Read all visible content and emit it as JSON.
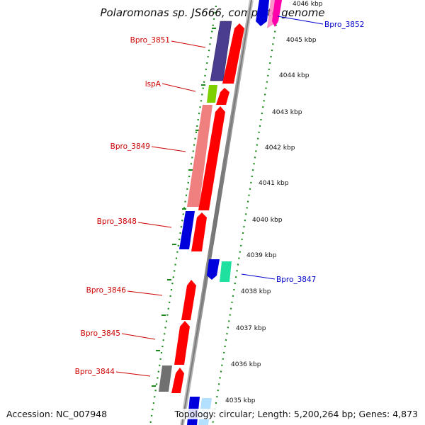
{
  "title": "Polaromonas sp. JS666, complete genome",
  "footer": {
    "accession": "Accession: NC_007948",
    "topology": "Topology: circular; Length: 5,200,264 bp; Genes: 4,873"
  },
  "scale_labels": [
    "4046 kbp",
    "4045 kbp",
    "4044 kbp",
    "4043 kbp",
    "4042 kbp",
    "4041 kbp",
    "4040 kbp",
    "4039 kbp",
    "4038 kbp",
    "4037 kbp",
    "4036 kbp",
    "4035 kbp"
  ],
  "gene_labels": [
    {
      "text": "Bpro_3851",
      "color": "#cc0000"
    },
    {
      "text": "lspA",
      "color": "#cc0000"
    },
    {
      "text": "Bpro_3849",
      "color": "#cc0000"
    },
    {
      "text": "Bpro_3848",
      "color": "#cc0000"
    },
    {
      "text": "Bpro_3846",
      "color": "#cc0000"
    },
    {
      "text": "Bpro_3845",
      "color": "#cc0000"
    },
    {
      "text": "Bpro_3844",
      "color": "#cc0000"
    },
    {
      "text": "Bpro_3852",
      "color": "#0000cc"
    },
    {
      "text": "Bpro_3847",
      "color": "#0000cc"
    }
  ],
  "colors": {
    "cds_red": "#ff0000",
    "cog_purple": "#4a3d8f",
    "cog_green": "#7fd000",
    "cog_pink": "#f08080",
    "cog_blue": "#0000dd",
    "cog_teal": "#20e0a0",
    "cog_gray": "#707070",
    "backbone": "#8c8c8c",
    "dots": "#1a8a1a"
  }
}
